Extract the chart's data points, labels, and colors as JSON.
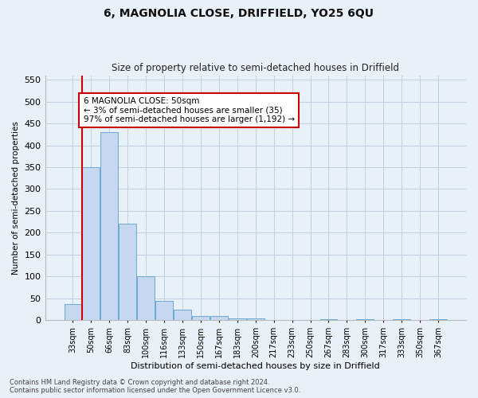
{
  "title": "6, MAGNOLIA CLOSE, DRIFFIELD, YO25 6QU",
  "subtitle": "Size of property relative to semi-detached houses in Driffield",
  "xlabel": "Distribution of semi-detached houses by size in Driffield",
  "ylabel": "Number of semi-detached properties",
  "footnote1": "Contains HM Land Registry data © Crown copyright and database right 2024.",
  "footnote2": "Contains public sector information licensed under the Open Government Licence v3.0.",
  "categories": [
    "33sqm",
    "50sqm",
    "66sqm",
    "83sqm",
    "100sqm",
    "116sqm",
    "133sqm",
    "150sqm",
    "167sqm",
    "183sqm",
    "200sqm",
    "217sqm",
    "233sqm",
    "250sqm",
    "267sqm",
    "283sqm",
    "300sqm",
    "317sqm",
    "333sqm",
    "350sqm",
    "367sqm"
  ],
  "values": [
    38,
    350,
    430,
    220,
    100,
    44,
    25,
    10,
    10,
    5,
    5,
    0,
    0,
    0,
    3,
    0,
    3,
    0,
    3,
    0,
    3
  ],
  "bar_color": "#c5d8ef",
  "bar_edge_color": "#6aaad4",
  "highlight_index": 1,
  "highlight_color": "#cc0000",
  "ylim": [
    0,
    560
  ],
  "yticks": [
    0,
    50,
    100,
    150,
    200,
    250,
    300,
    350,
    400,
    450,
    500,
    550
  ],
  "annotation_title": "6 MAGNOLIA CLOSE: 50sqm",
  "annotation_line1": "← 3% of semi-detached houses are smaller (35)",
  "annotation_line2": "97% of semi-detached houses are larger (1,192) →",
  "annotation_box_color": "#ffffff",
  "annotation_box_edge": "#cc0000",
  "grid_color": "#c0cfe0",
  "background_color": "#e8f0f8"
}
